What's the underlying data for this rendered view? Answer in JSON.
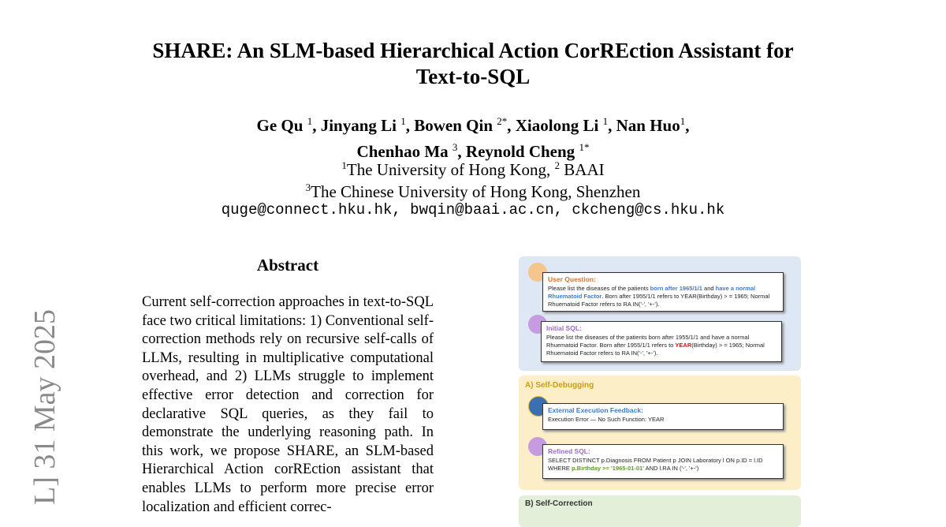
{
  "paper": {
    "title_line1": "SHARE: An SLM-based Hierarchical Action CorREction Assistant for",
    "title_line2": "Text-to-SQL",
    "authors": [
      {
        "name": "Ge Qu",
        "sup": "1"
      },
      {
        "name": "Jinyang Li",
        "sup": "1"
      },
      {
        "name": "Bowen Qin",
        "sup": "2*"
      },
      {
        "name": "Xiaolong Li",
        "sup": "1"
      },
      {
        "name": "Nan Huo",
        "sup": "1"
      },
      {
        "name": "Chenhao Ma",
        "sup": "3"
      },
      {
        "name": "Reynold Cheng",
        "sup": "1*"
      }
    ],
    "affiliation1": "The University of Hong Kong, ",
    "affiliation1_sup": "1",
    "affiliation2_sup": "2",
    "affiliation2": " BAAI",
    "affiliation3_sup": "3",
    "affiliation3": "The Chinese University of Hong Kong, Shenzhen",
    "emails": "quge@connect.hku.hk, bwqin@baai.ac.cn, ckcheng@cs.hku.hk",
    "arxiv_side": "L]  31 May 2025",
    "abstract_heading": "Abstract",
    "abstract": "Current self-correction approaches in text-to-SQL face two critical limitations: 1) Conventional self-correction methods rely on recursive self-calls of LLMs, resulting in multiplicative computational overhead, and 2) LLMs struggle to implement effective error detection and correction for declarative SQL queries, as they fail to demonstrate the underlying reasoning path.  In this work, we propose SHARE, an SLM-based Hierarchical Action corREction assistant that enables LLMs to perform more precise error localization and efficient correc-"
  },
  "figure": {
    "user_question_label": "User Question:",
    "uq_t1": "Please list the diseases of the patients ",
    "uq_h1": "born after 1965/1/1",
    "uq_t2": " and ",
    "uq_h2": "have a normal Rhuematoid Factor",
    "uq_t3": ". Born after 1955/1/1 refers to YEAR(Birthday) > = 1965; Normal Rhuematoid Factor refers to RA IN('-', '+-').",
    "initial_sql_label": "Initial SQL:",
    "is_t1": "Please list the diseases of the patients born after 1955/1/1 and have a normal Rhuematoid Factor. Born after 1955/1/1 refers to ",
    "is_h1": "YEAR",
    "is_t2": "(Birthday) > = 1965; Normal Rhuematoid Factor refers to RA IN('-', '+-').",
    "section_a": "A)  Self-Debugging",
    "feedback_label": "External Execution Feedback:",
    "feedback_text": "Execution Error  —  No Such Function: YEAR",
    "refined_label": "Refined SQL:",
    "rs_t1": "SELECT DISTINCT p.Diagnosis FROM Patient p JOIN Laboratory l ON p.ID = l.ID WHERE ",
    "rs_h1": "p.Birthday >= '1965-01-01'",
    "rs_t2": " AND l.RA IN ('-', '+-')",
    "section_b": "B)  Self-Correction",
    "colors": {
      "blue_panel": "#dde8f4",
      "yellow_panel": "#fcefc8",
      "green_panel": "#e3efd9",
      "orange": "#d9722a",
      "purple": "#9b6bc6",
      "blue": "#3d7cc9",
      "red": "#d11",
      "green": "#5a9a2a",
      "section_gold": "#c89b1a"
    }
  }
}
